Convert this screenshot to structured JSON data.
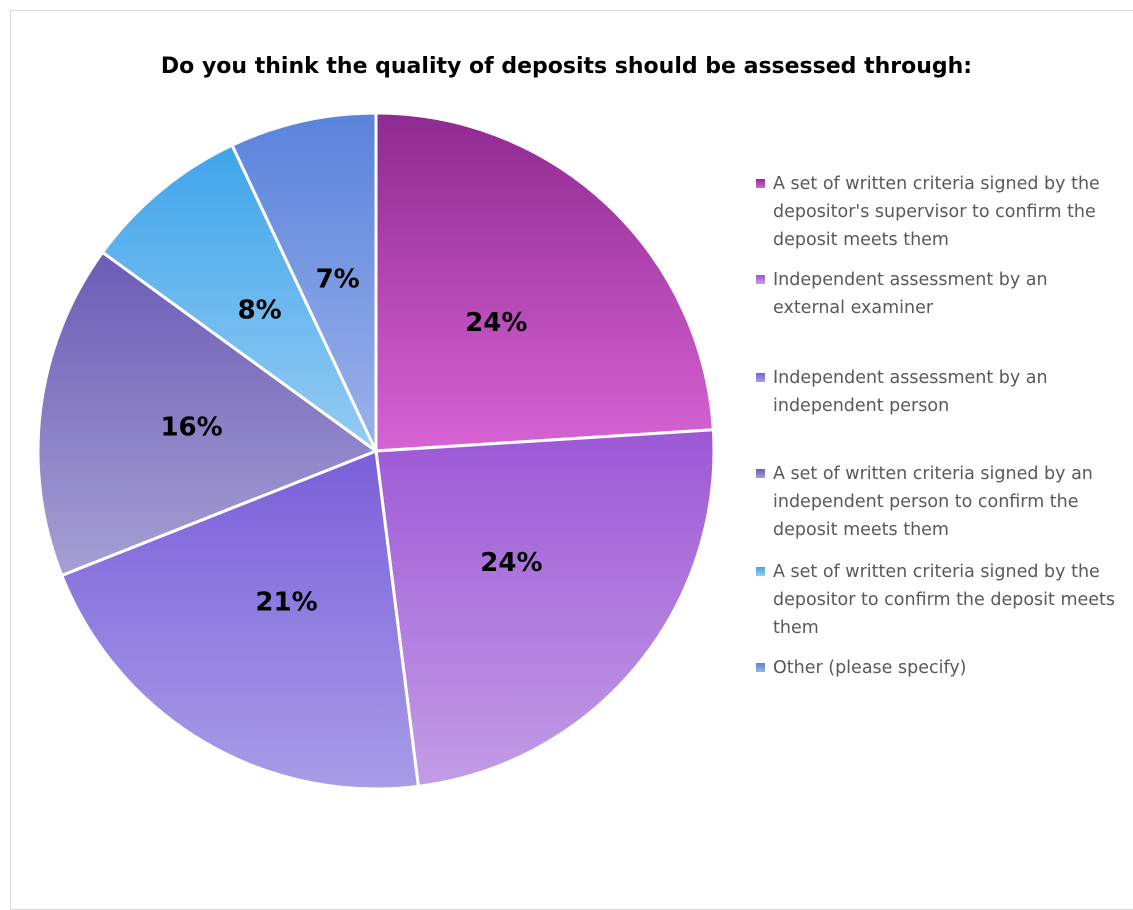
{
  "chart_data": {
    "type": "pie",
    "title": "Do you think the quality of deposits should be assessed through:",
    "slices": [
      {
        "name": "A set of written criteria signed by the depositor's supervisor to confirm the deposit meets them",
        "value": 24,
        "label": "24%",
        "color_top": "#8e2a91",
        "color_bottom": "#d763d4"
      },
      {
        "name": "Independent assessment by an external examiner",
        "value": 24,
        "label": "24%",
        "color_top": "#9d57d6",
        "color_bottom": "#c29de6"
      },
      {
        "name": "Independent assessment by an independent person",
        "value": 21,
        "label": "21%",
        "color_top": "#7a5fd9",
        "color_bottom": "#a89ce8"
      },
      {
        "name": "A set of written criteria signed by an independent person to confirm the deposit meets them",
        "value": 16,
        "label": "16%",
        "color_top": "#6b5cb6",
        "color_bottom": "#a69fd4"
      },
      {
        "name": "A set of written criteria signed by the depositor to confirm the deposit meets them",
        "value": 8,
        "label": "8%",
        "color_top": "#3fa5ea",
        "color_bottom": "#95cbf3"
      },
      {
        "name": "Other (please specify)",
        "value": 7,
        "label": "7%",
        "color_top": "#5a83dc",
        "color_bottom": "#9cb1e9"
      }
    ],
    "legend_position": "right"
  }
}
